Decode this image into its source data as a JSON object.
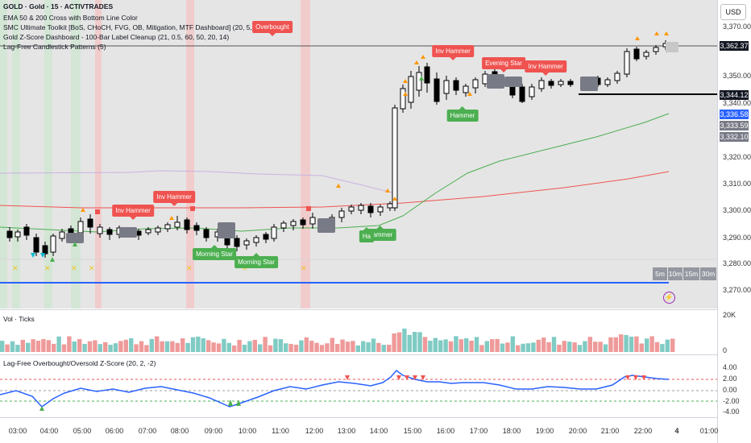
{
  "symbol_line": "GOLD · Gold · 15 · ACTIVTRADES",
  "indicators": [
    "EMA 50 & 200 Cross with Bottom Line Color",
    "SMC Ultimate Toolkit [BoS, CHoCH, FVG, OB, Mitigation, MTF Dashboard] (20, 5, 60)",
    "Gold Z-Score Dashboard - 100-Bar Label Cleanup (21, 0.5, 60, 50, 20, 14)",
    "Lag-Free Candlestick Patterns (5)"
  ],
  "currency": "USD",
  "price_ticks": [
    "3,370.00",
    "3,350.00",
    "3,340.00",
    "3,320.00",
    "3,310.00",
    "3,300.00",
    "3,290.00",
    "3,280.00",
    "3,270.00"
  ],
  "price_boxes": [
    {
      "text": "3,362.37",
      "bg": "#131722"
    },
    {
      "text": "3,344.12",
      "bg": "#131722"
    },
    {
      "text": "3,336.58",
      "bg": "#2962ff"
    },
    {
      "text": "3,333.59",
      "bg": "#787b86"
    },
    {
      "text": "3,332.10",
      "bg": "#787b86"
    }
  ],
  "time_ticks": [
    "03:00",
    "04:00",
    "05:00",
    "06:00",
    "07:00",
    "08:00",
    "09:00",
    "10:00",
    "11:00",
    "12:00",
    "13:00",
    "14:00",
    "15:00",
    "16:00",
    "17:00",
    "18:00",
    "19:00",
    "20:00",
    "21:00",
    "22:00",
    "4",
    "01:00"
  ],
  "pattern_labels": [
    {
      "text": "Overbought",
      "color": "red"
    },
    {
      "text": "Inv Hammer",
      "color": "red"
    },
    {
      "text": "Inv Hammer",
      "color": "red"
    },
    {
      "text": "Inv Hammer",
      "color": "red"
    },
    {
      "text": "Evening Star",
      "color": "red"
    },
    {
      "text": "Inv Hammer",
      "color": "red"
    },
    {
      "text": "Morning Star",
      "color": "green"
    },
    {
      "text": "Morning Star",
      "color": "green"
    },
    {
      "text": "Hammer",
      "color": "green"
    },
    {
      "text": "Hammer",
      "color": "green"
    },
    {
      "text": "Ha",
      "color": "green"
    }
  ],
  "timeframes": [
    "5m",
    "10m",
    "15m",
    "30m"
  ],
  "volume_pane": {
    "title": "Vol · Ticks",
    "max_label": "20K",
    "min_label": "0"
  },
  "zscore_pane": {
    "title": "Lag-Free Overbought/Oversold Z-Score (20, 2, -2)",
    "ticks": [
      "4.00",
      "2.00",
      "0.00",
      "-2.00",
      "-4.00"
    ]
  },
  "colors": {
    "bull": "#ffffff",
    "bear": "#000000",
    "ema50": "#4caf50",
    "ema200": "#ef5350",
    "zline": "#2962ff",
    "bg_red": "#f8bbbb",
    "bg_green": "#c8e6c9"
  }
}
